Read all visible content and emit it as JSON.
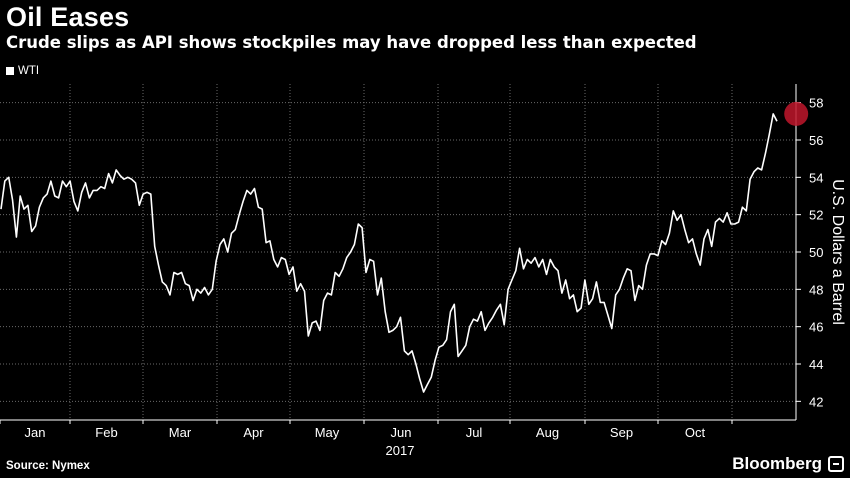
{
  "title": "Oil Eases",
  "subtitle": "Crude slips as API shows stockpiles may have dropped less than expected",
  "legend": {
    "label": "WTI"
  },
  "source": "Source: Nymex",
  "brand": "Bloomberg",
  "colors": {
    "background": "#000000",
    "line": "#ffffff",
    "grid": "#6a6a6a",
    "highlight": "#c0162c"
  },
  "chart_data": {
    "type": "line",
    "title": "Oil Eases",
    "xlabel": "2017",
    "ylabel": "U.S. Dollars a Barrel",
    "ylim": [
      41,
      59
    ],
    "yticks": [
      42,
      44,
      46,
      48,
      50,
      52,
      54,
      56,
      58
    ],
    "ytick_labels": [
      "42",
      "44",
      "46",
      "48",
      "50",
      "52",
      "54",
      "56",
      "58"
    ],
    "month_labels": [
      "Jan",
      "Feb",
      "Mar",
      "Apr",
      "May",
      "Jun",
      "Jul",
      "Aug",
      "Sep",
      "Oct"
    ],
    "legend_position": "top-left",
    "grid": true,
    "highlight": {
      "index": 207,
      "value": 57.4
    },
    "series": [
      {
        "name": "WTI",
        "values": [
          52.3,
          53.8,
          54.0,
          52.8,
          50.8,
          53.0,
          52.3,
          52.5,
          51.1,
          51.4,
          52.4,
          52.9,
          53.1,
          53.8,
          53.0,
          52.9,
          53.8,
          53.5,
          53.8,
          52.7,
          52.2,
          53.2,
          53.7,
          52.9,
          53.3,
          53.3,
          53.5,
          53.4,
          54.2,
          53.7,
          54.4,
          54.1,
          53.9,
          54.0,
          53.9,
          53.7,
          52.5,
          53.1,
          53.2,
          53.1,
          50.3,
          49.3,
          48.4,
          48.2,
          47.7,
          48.9,
          48.8,
          48.9,
          48.3,
          48.2,
          47.4,
          48.0,
          47.8,
          48.1,
          47.7,
          48.0,
          49.5,
          50.4,
          50.7,
          50.0,
          51.0,
          51.2,
          52.0,
          52.7,
          53.3,
          53.1,
          53.4,
          52.4,
          52.3,
          50.5,
          50.6,
          49.6,
          49.2,
          49.7,
          49.6,
          48.8,
          49.2,
          47.9,
          48.3,
          47.9,
          45.5,
          46.2,
          46.3,
          45.8,
          47.4,
          47.8,
          47.7,
          48.9,
          48.7,
          49.1,
          49.7,
          50.0,
          50.4,
          51.5,
          51.3,
          48.9,
          49.6,
          49.5,
          47.7,
          48.6,
          46.8,
          45.7,
          45.8,
          46.0,
          46.5,
          44.7,
          44.5,
          44.7,
          44.0,
          43.2,
          42.5,
          42.9,
          43.3,
          44.2,
          44.9,
          45.0,
          45.3,
          46.8,
          47.2,
          44.4,
          44.7,
          45.0,
          46.0,
          46.4,
          46.3,
          46.8,
          45.8,
          46.2,
          46.5,
          46.9,
          47.2,
          46.1,
          48.0,
          48.5,
          49.0,
          50.2,
          49.1,
          49.6,
          49.4,
          49.7,
          49.2,
          49.6,
          48.8,
          49.6,
          49.2,
          49.0,
          47.8,
          48.5,
          47.5,
          47.7,
          46.8,
          47.0,
          48.5,
          47.2,
          47.5,
          48.4,
          47.3,
          47.3,
          46.6,
          45.9,
          47.7,
          48.0,
          48.6,
          49.1,
          49.0,
          47.4,
          48.2,
          48.0,
          49.3,
          49.9,
          49.9,
          49.8,
          50.6,
          50.4,
          51.0,
          52.2,
          51.7,
          52.0,
          51.2,
          50.5,
          50.7,
          49.9,
          49.3,
          50.7,
          51.2,
          50.3,
          51.6,
          51.8,
          51.6,
          52.1,
          51.5,
          51.5,
          51.6,
          52.4,
          52.2,
          53.9,
          54.3,
          54.5,
          54.4,
          55.3,
          56.3,
          57.4,
          57.0
        ]
      }
    ]
  }
}
